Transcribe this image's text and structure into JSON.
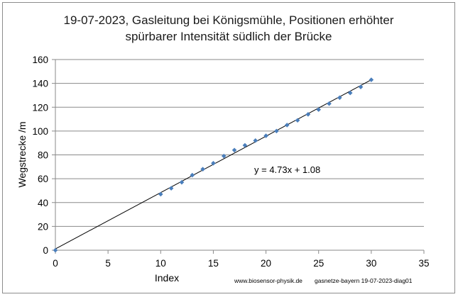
{
  "chart_data": {
    "type": "scatter",
    "title": [
      "19-07-2023, Gasleitung bei Königsmühle, Positionen erhöhter",
      "spürbarer Intensität südlich der Brücke"
    ],
    "xlabel": "Index",
    "ylabel": "Wegstrecke /m",
    "xlim": [
      0,
      35
    ],
    "ylim": [
      0,
      160
    ],
    "xticks": [
      0,
      5,
      10,
      15,
      20,
      25,
      30,
      35
    ],
    "yticks": [
      0,
      20,
      40,
      60,
      80,
      100,
      120,
      140,
      160
    ],
    "grid": "horizontal",
    "points": [
      {
        "x": 0,
        "y": 0
      },
      {
        "x": 10,
        "y": 47
      },
      {
        "x": 11,
        "y": 52
      },
      {
        "x": 12,
        "y": 57
      },
      {
        "x": 13,
        "y": 63
      },
      {
        "x": 14,
        "y": 68
      },
      {
        "x": 15,
        "y": 73
      },
      {
        "x": 16,
        "y": 79
      },
      {
        "x": 17,
        "y": 84
      },
      {
        "x": 18,
        "y": 88
      },
      {
        "x": 19,
        "y": 92
      },
      {
        "x": 20,
        "y": 96
      },
      {
        "x": 21,
        "y": 100
      },
      {
        "x": 22,
        "y": 105
      },
      {
        "x": 23,
        "y": 109
      },
      {
        "x": 24,
        "y": 114
      },
      {
        "x": 25,
        "y": 118
      },
      {
        "x": 26,
        "y": 123
      },
      {
        "x": 27,
        "y": 128
      },
      {
        "x": 28,
        "y": 132
      },
      {
        "x": 29,
        "y": 137
      },
      {
        "x": 30,
        "y": 143
      }
    ],
    "trendline": {
      "slope": 4.73,
      "intercept": 1.08,
      "x_range": [
        0,
        30
      ]
    },
    "annotation": "y = 4.73x + 1.08",
    "marker_color": "#4a7ebb",
    "line_color": "#000000",
    "credits": [
      "www.biosensor-physik.de",
      "gasnetze-bayern 19-07-2023-diag01"
    ]
  }
}
